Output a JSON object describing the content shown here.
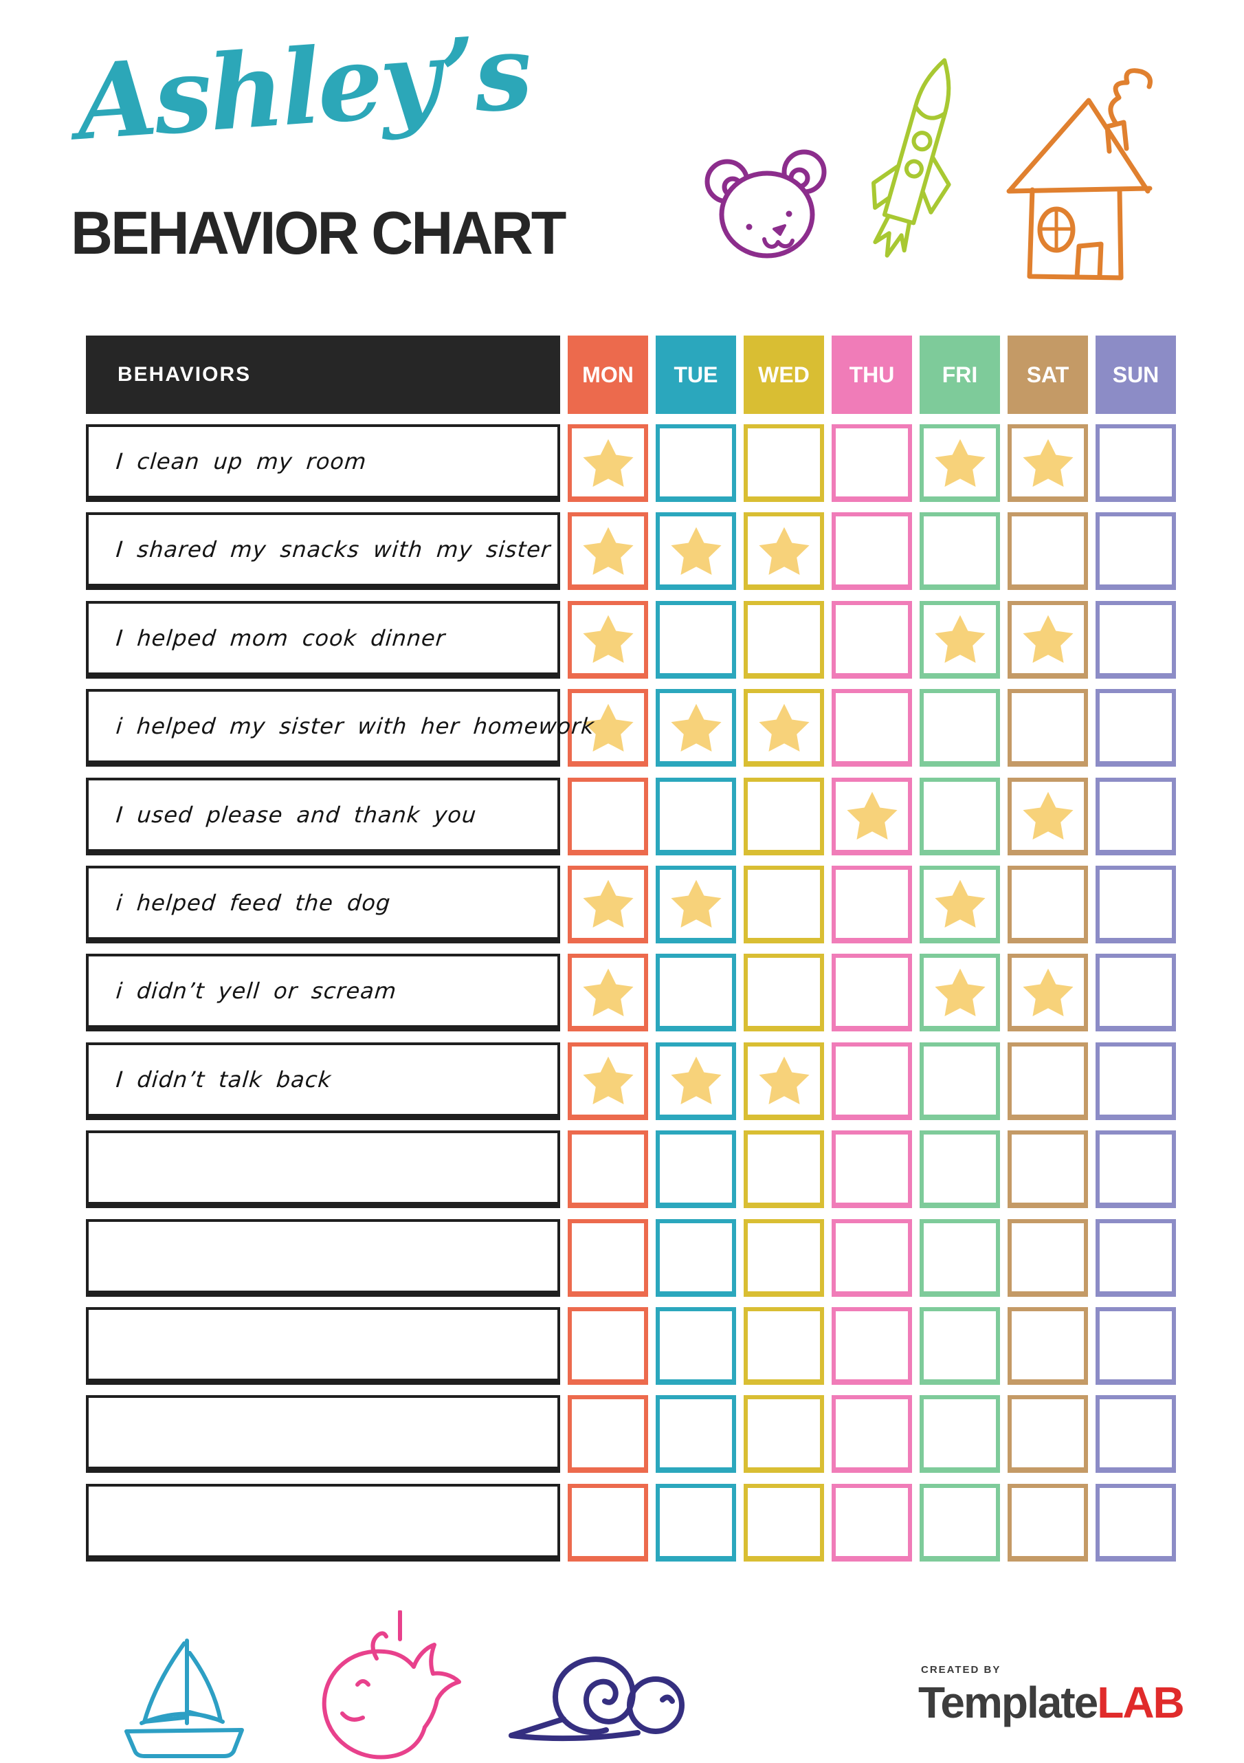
{
  "page": {
    "title_script": "Ashley’s",
    "title_main": "BEHAVIOR CHART"
  },
  "colors": {
    "title_script": "#2CA7B8",
    "title_main": "#262626",
    "header_bg": "#262626",
    "star": "#F7D27A",
    "bear": "#8C2D8C",
    "rocket": "#A8C832",
    "house": "#E0802F",
    "sailboat": "#2D9FC4",
    "whale": "#E8418C",
    "snail": "#352F80",
    "logo_dark": "#3D3D3D",
    "logo_red": "#E02B2B"
  },
  "icons": {
    "top": [
      "bear-icon",
      "rocket-icon",
      "house-icon"
    ],
    "bottom": [
      "sailboat-icon",
      "whale-icon",
      "snail-icon"
    ],
    "cell_mark": "star-icon"
  },
  "table": {
    "behaviors_header": "BEHAVIORS",
    "days": [
      {
        "label": "MON",
        "color": "#EC6A4D"
      },
      {
        "label": "TUE",
        "color": "#2BA7BD"
      },
      {
        "label": "WED",
        "color": "#D9BE33"
      },
      {
        "label": "THU",
        "color": "#F07CB8"
      },
      {
        "label": "FRI",
        "color": "#7ECB9A"
      },
      {
        "label": "SAT",
        "color": "#C49A66"
      },
      {
        "label": "SUN",
        "color": "#8C8CC6"
      }
    ],
    "rows": [
      {
        "label": "I clean up my room",
        "stars": [
          "MON",
          "FRI",
          "SAT"
        ]
      },
      {
        "label": "I shared my snacks with my sister",
        "stars": [
          "MON",
          "TUE",
          "WED"
        ]
      },
      {
        "label": "I helped mom cook dinner",
        "stars": [
          "MON",
          "FRI",
          "SAT"
        ]
      },
      {
        "label": "i helped my sister with her homework",
        "stars": [
          "MON",
          "TUE",
          "WED"
        ]
      },
      {
        "label": "I used please and thank you",
        "stars": [
          "THU",
          "SAT"
        ]
      },
      {
        "label": "i helped feed the dog",
        "stars": [
          "MON",
          "TUE",
          "FRI"
        ]
      },
      {
        "label": "i didn’t yell or scream",
        "stars": [
          "MON",
          "FRI",
          "SAT"
        ]
      },
      {
        "label": "I didn’t talk back",
        "stars": [
          "MON",
          "TUE",
          "WED"
        ]
      },
      {
        "label": "",
        "stars": []
      },
      {
        "label": "",
        "stars": []
      },
      {
        "label": "",
        "stars": []
      },
      {
        "label": "",
        "stars": []
      },
      {
        "label": "",
        "stars": []
      }
    ]
  },
  "footer": {
    "credit_small": "CREATED BY",
    "brand_dark": "Template",
    "brand_red": "LAB"
  }
}
